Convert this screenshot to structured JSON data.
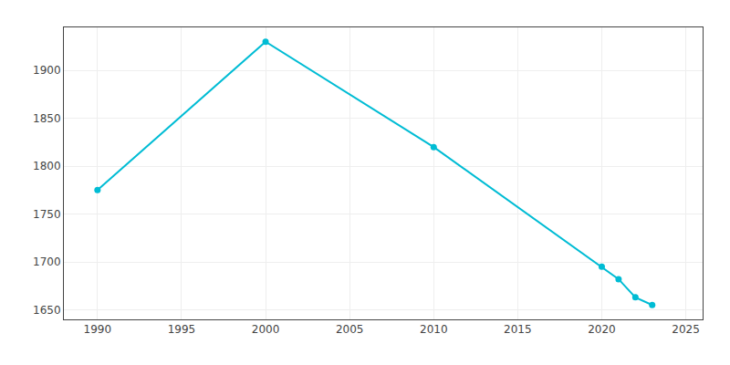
{
  "chart_data": {
    "type": "line",
    "x": [
      1990,
      2000,
      2010,
      2020,
      2021,
      2022,
      2023
    ],
    "values": [
      1775,
      1930,
      1820,
      1695,
      1682,
      1663,
      1655
    ],
    "color": "#00bcd4",
    "marker": "circle",
    "xlim": [
      1988,
      2026
    ],
    "ylim": [
      1640,
      1945
    ],
    "xticks": [
      1990,
      1995,
      2000,
      2005,
      2010,
      2015,
      2020,
      2025
    ],
    "yticks": [
      1650,
      1700,
      1750,
      1800,
      1850,
      1900
    ],
    "grid": true
  }
}
